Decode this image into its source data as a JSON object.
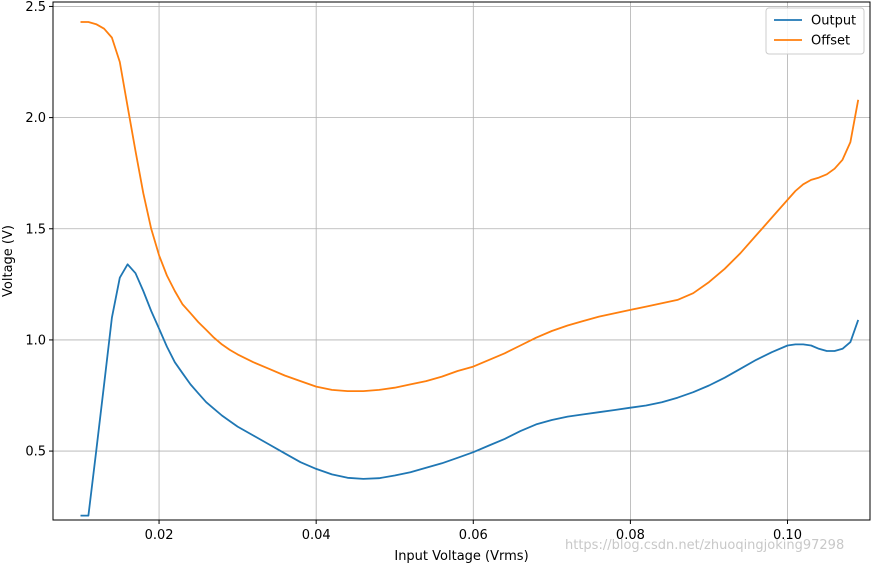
{
  "chart_data": {
    "type": "line",
    "title": "",
    "xlabel": "Input Voltage (Vrms)",
    "ylabel": "Voltage (V)",
    "xlim": [
      0.0065,
      0.1105
    ],
    "ylim": [
      0.19,
      2.52
    ],
    "x_ticks": [
      0.02,
      0.04,
      0.06,
      0.08,
      0.1
    ],
    "x_tick_labels": [
      "0.02",
      "0.04",
      "0.06",
      "0.08",
      "0.10"
    ],
    "y_ticks": [
      0.5,
      1.0,
      1.5,
      2.0,
      2.5
    ],
    "y_tick_labels": [
      "0.5",
      "1.0",
      "1.5",
      "2.0",
      "2.5"
    ],
    "grid": true,
    "legend": "top-right",
    "series": [
      {
        "name": "Output",
        "color": "#1f77b4",
        "x": [
          0.01,
          0.011,
          0.012,
          0.013,
          0.014,
          0.015,
          0.016,
          0.017,
          0.018,
          0.019,
          0.02,
          0.021,
          0.022,
          0.023,
          0.024,
          0.025,
          0.026,
          0.027,
          0.028,
          0.029,
          0.03,
          0.032,
          0.034,
          0.036,
          0.038,
          0.04,
          0.042,
          0.044,
          0.046,
          0.048,
          0.05,
          0.052,
          0.054,
          0.056,
          0.058,
          0.06,
          0.062,
          0.064,
          0.066,
          0.068,
          0.07,
          0.072,
          0.074,
          0.076,
          0.078,
          0.08,
          0.082,
          0.084,
          0.086,
          0.088,
          0.09,
          0.092,
          0.094,
          0.096,
          0.098,
          0.1,
          0.101,
          0.102,
          0.103,
          0.104,
          0.105,
          0.106,
          0.107,
          0.108,
          0.109
        ],
        "y": [
          0.21,
          0.21,
          0.5,
          0.8,
          1.1,
          1.28,
          1.34,
          1.3,
          1.22,
          1.13,
          1.05,
          0.97,
          0.9,
          0.85,
          0.8,
          0.76,
          0.72,
          0.69,
          0.66,
          0.635,
          0.61,
          0.57,
          0.53,
          0.49,
          0.45,
          0.42,
          0.395,
          0.38,
          0.375,
          0.378,
          0.39,
          0.405,
          0.425,
          0.445,
          0.47,
          0.495,
          0.525,
          0.555,
          0.59,
          0.62,
          0.64,
          0.655,
          0.665,
          0.675,
          0.685,
          0.695,
          0.705,
          0.72,
          0.74,
          0.765,
          0.795,
          0.83,
          0.87,
          0.91,
          0.945,
          0.975,
          0.98,
          0.98,
          0.975,
          0.96,
          0.95,
          0.95,
          0.96,
          0.99,
          1.09
        ]
      },
      {
        "name": "Offset",
        "color": "#ff7f0e",
        "x": [
          0.01,
          0.011,
          0.012,
          0.013,
          0.014,
          0.015,
          0.016,
          0.017,
          0.018,
          0.019,
          0.02,
          0.021,
          0.022,
          0.023,
          0.024,
          0.025,
          0.026,
          0.027,
          0.028,
          0.029,
          0.03,
          0.032,
          0.034,
          0.036,
          0.038,
          0.04,
          0.042,
          0.044,
          0.046,
          0.048,
          0.05,
          0.052,
          0.054,
          0.056,
          0.058,
          0.06,
          0.062,
          0.064,
          0.066,
          0.068,
          0.07,
          0.072,
          0.074,
          0.076,
          0.078,
          0.08,
          0.082,
          0.084,
          0.086,
          0.088,
          0.09,
          0.092,
          0.094,
          0.096,
          0.098,
          0.1,
          0.101,
          0.102,
          0.103,
          0.104,
          0.105,
          0.106,
          0.107,
          0.108,
          0.109
        ],
        "y": [
          2.43,
          2.43,
          2.42,
          2.4,
          2.36,
          2.25,
          2.05,
          1.85,
          1.66,
          1.5,
          1.38,
          1.29,
          1.22,
          1.16,
          1.12,
          1.08,
          1.045,
          1.01,
          0.98,
          0.955,
          0.935,
          0.9,
          0.87,
          0.84,
          0.815,
          0.79,
          0.775,
          0.77,
          0.77,
          0.775,
          0.785,
          0.8,
          0.815,
          0.835,
          0.86,
          0.88,
          0.91,
          0.94,
          0.975,
          1.01,
          1.04,
          1.065,
          1.085,
          1.105,
          1.12,
          1.135,
          1.15,
          1.165,
          1.18,
          1.21,
          1.26,
          1.32,
          1.39,
          1.47,
          1.55,
          1.63,
          1.67,
          1.7,
          1.72,
          1.73,
          1.745,
          1.77,
          1.81,
          1.89,
          2.08
        ]
      }
    ]
  },
  "watermark": "https://blog.csdn.net/zhuoqingjoking97298"
}
